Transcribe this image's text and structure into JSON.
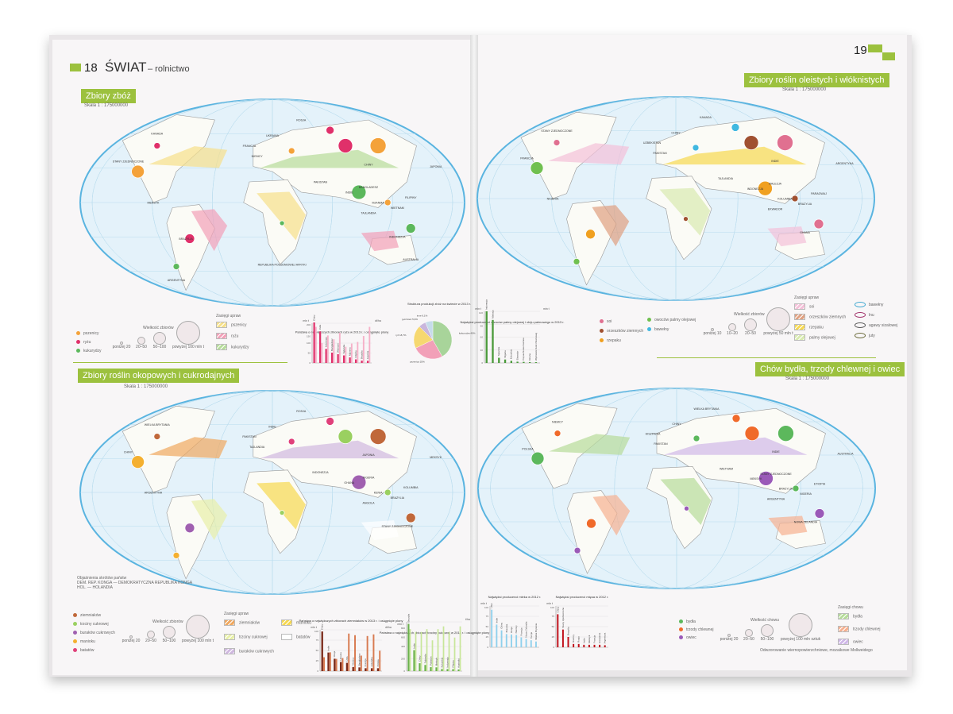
{
  "left_page": {
    "page_number": "18",
    "title": "ŚWIAT",
    "subtitle": "– rolnictwo",
    "section1": {
      "title": "Zbiory zbóż",
      "scale": "Skala 1 : 175000000",
      "labels": [
        "ROSJA",
        "KANADA",
        "STANY ZJEDNOCZONE",
        "FRANCJA",
        "UKRAINA",
        "NIEMCY",
        "CHINY",
        "PAKISTAN",
        "BANGLADESZ",
        "INDIE",
        "MJANMA",
        "TAJLANDIA",
        "WIETNAM",
        "FILIPINY",
        "JAPONIA",
        "INDONEZJA",
        "MEKSYK",
        "BRAZYLIA",
        "ARGENTYNA",
        "AUSTRALIA",
        "REPUBLIKA POŁUDNIOWEJ AFRYKI"
      ],
      "legend": {
        "sizes_title": "Wielkość zbiorów",
        "crops": [
          {
            "label": "pszenicy",
            "color": "#f4a23a"
          },
          {
            "label": "ryżu",
            "color": "#e0306a"
          },
          {
            "label": "kukurydzy",
            "color": "#5cb85c"
          }
        ],
        "sizes": [
          "poniżej 20",
          "20–50",
          "50–100",
          "powyżej 100 mln t"
        ],
        "ranges_title": "Zasięgi upraw",
        "ranges": [
          {
            "label": "pszenicy",
            "color": "#f6e08a"
          },
          {
            "label": "ryżu",
            "color": "#f2a0b8"
          },
          {
            "label": "kukurydzy",
            "color": "#b6dc9a"
          }
        ]
      },
      "rice_chart": {
        "title": "Państwa o największych zbiorach ryżu w 2013 r. i osiągnięte plony",
        "ylabel_left": "mln t",
        "ylabel_right": "dt/ha",
        "categories": [
          "Chiny",
          "Indie",
          "Indonezja",
          "Bangladesz",
          "Wietnam",
          "Tajlandia",
          "Mjanma",
          "Filipiny",
          "Brazylia",
          "Japonia"
        ],
        "values": [
          204,
          159,
          71,
          52,
          44,
          38,
          28,
          18,
          12,
          11
        ],
        "yields": [
          67,
          37,
          51,
          44,
          56,
          30,
          36,
          39,
          50,
          67
        ],
        "ylim": [
          0,
          200
        ],
        "color": "#e0306a"
      },
      "pie_chart": {
        "title": "Struktura produkcji zbóż na świecie w 2013 r.",
        "slices": [
          {
            "label": "kukurydza",
            "value": 40,
            "text": "kukurydza 40%",
            "color": "#a8d49a"
          },
          {
            "label": "pszenica",
            "value": 25,
            "text": "pszenica 25%",
            "color": "#f2a0b8"
          },
          {
            "label": "ryż",
            "value": 18.7,
            "text": "ryż 18,7%",
            "color": "#f6d870"
          },
          {
            "label": "jęczmień",
            "value": 5.9,
            "text": "jęczmień 5,9%",
            "color": "#c9b6dc"
          },
          {
            "label": "inne",
            "value": 6.1,
            "text": "inne 6,1%",
            "color": "#c6dcea"
          }
        ]
      }
    },
    "section2": {
      "title": "Zbiory roślin okopowych i cukrodajnych",
      "scale": "Skala 1 : 175000000",
      "labels": [
        "ROSJA",
        "WIELKA BRYTANIA",
        "CHINY",
        "PAKISTAN",
        "INDIE",
        "TAJLANDIA",
        "JAPONIA",
        "INDONEZJA",
        "NIGERIA",
        "GHANA",
        "KENIA",
        "ANGOLA",
        "BRAZYLIA",
        "KOLUMBIA",
        "MEKSYK",
        "STANY ZJEDNOCZONE",
        "ARGENTYNA"
      ],
      "abbr_title": "Objaśnienia skrótów państw",
      "abbr": [
        {
          "short": "DEM. REP. KONGA",
          "full": "DEMOKRATYCZNA REPUBLIKA KONGA"
        },
        {
          "short": "HOL.",
          "full": "HOLANDIA"
        }
      ],
      "legend": {
        "sizes_title": "Wielkość zbiorów",
        "crops": [
          {
            "label": "ziemniaków",
            "color": "#c0683a"
          },
          {
            "label": "trzciny cukrowej",
            "color": "#9ad060"
          },
          {
            "label": "buraków cukrowych",
            "color": "#a060b0"
          },
          {
            "label": "manioku",
            "color": "#f4b030"
          },
          {
            "label": "batatów",
            "color": "#e0407a"
          }
        ],
        "sizes": [
          "poniżej 20",
          "20–50",
          "50–100",
          "powyżej 100 mln t"
        ],
        "ranges_title": "Zasięgi upraw",
        "ranges": [
          {
            "label": "ziemniaków",
            "color": "#f0a860"
          },
          {
            "label": "trzciny cukrowej",
            "color": "#e8f0a8"
          },
          {
            "label": "buraków cukrowych",
            "color": "#d0b8e0"
          },
          {
            "label": "manioku",
            "color": "#f6d850"
          },
          {
            "label": "batatów",
            "color": "#ffffff"
          }
        ]
      },
      "potato_chart": {
        "title": "Państwa o największych zbiorach ziemniaków w 2013 r. i osiągnięte plony",
        "ylabel_left": "mln t",
        "ylabel_right": "dt/ha",
        "categories": [
          "Chiny",
          "Indie",
          "Rosja",
          "Ukraina",
          "USA",
          "Niemcy",
          "Bangladesz",
          "Francja",
          "Holandia",
          "Polska"
        ],
        "values": [
          96,
          45,
          30,
          22,
          20,
          10,
          9,
          7,
          7,
          7
        ],
        "yields": [
          170,
          230,
          150,
          160,
          460,
          440,
          190,
          430,
          450,
          250
        ],
        "ylim": [
          0,
          100
        ],
        "color": "#7a2a1a",
        "color2": "#d87a50"
      },
      "sugarcane_chart": {
        "title": "Państwa o największych zbiorach trzciny cukrowej w 2013 r. i osiągnięte plony",
        "ylabel_left": "mln t",
        "ylabel_right": "t/ha",
        "categories": [
          "Brazylia",
          "Indie",
          "Chiny",
          "Tajlandia",
          "Pakistan",
          "Meksyk",
          "Kolumbia",
          "Indonezja",
          "Filipiny",
          "Australia"
        ],
        "values": [
          768,
          341,
          128,
          100,
          64,
          61,
          34,
          33,
          32,
          27
        ],
        "yields": [
          75,
          70,
          70,
          75,
          55,
          75,
          80,
          70,
          60,
          80
        ],
        "ylim": [
          0,
          800
        ],
        "color": "#6ab04c",
        "color2": "#c8e69a"
      }
    }
  },
  "right_page": {
    "page_number": "19",
    "section1": {
      "title": "Zbiory roślin oleistych i włóknistych",
      "scale": "Skala 1 : 175000000",
      "labels": [
        "KANADA",
        "STANY ZJEDNOCZONE",
        "FRANCJA",
        "UZBEKISTAN",
        "CHINY",
        "PAKISTAN",
        "INDIE",
        "TAJLANDIA",
        "MALEZJA",
        "INDONEZJA",
        "KOLUMBIA",
        "EKWADOR",
        "BRAZYLIA",
        "PARAGWAJ",
        "ARGENTYNA",
        "GHANA",
        "NIGERIA"
      ],
      "palm_chart": {
        "title": "Najwięksi producenci owoców palmy olejowej i oleju palmowego w 2013 r.",
        "ylabel_left": "mln t",
        "ylabel_right": "mln t",
        "categories": [
          "Indonezja",
          "Malezja",
          "Tajlandia",
          "Nigeria",
          "Kolumbia",
          "Ekwador",
          "Papua-Nowa Gwinea",
          "Ghana",
          "Wybrzeże Kości Słoniowej"
        ],
        "values": [
          120,
          100,
          12,
          8,
          5,
          3,
          2.5,
          2,
          1.8
        ],
        "ylim": [
          0,
          120
        ],
        "color": "#4a9a3a"
      },
      "legend": {
        "sizes_title": "Wielkość zbiorów",
        "crops": [
          {
            "label": "soi",
            "color": "#e07090"
          },
          {
            "label": "orzeszków ziemnych",
            "color": "#a05030"
          },
          {
            "label": "rzepaku",
            "color": "#f0a020"
          },
          {
            "label": "owoców palmy olejowej",
            "color": "#70c050"
          },
          {
            "label": "bawełny",
            "color": "#40b8e0"
          }
        ],
        "sizes": [
          "poniżej 10",
          "10–20",
          "20–50",
          "powyżej 50 mln t"
        ],
        "ranges_title": "Zasięgi upraw",
        "ranges": [
          {
            "label": "soi",
            "color": "#f4c0d8"
          },
          {
            "label": "orzeszków ziemnych",
            "color": "#e0a080"
          },
          {
            "label": "rzepaku",
            "color": "#f6d850"
          },
          {
            "label": "palmy olejowej",
            "color": "#d8eab0"
          }
        ],
        "outlines": [
          {
            "label": "bawełny",
            "color": "#40a8d0"
          },
          {
            "label": "lnu",
            "color": "#a0306a"
          },
          {
            "label": "agawy sizalowej",
            "color": "#555555"
          },
          {
            "label": "juty",
            "color": "#6a6a3a"
          }
        ]
      }
    },
    "section2": {
      "title": "Chów bydła, trzody chlewnej i owiec",
      "scale": "Skala 1 : 175000000",
      "labels": [
        "WIELKA BRYTANIA",
        "NIEMCY",
        "POLSKA",
        "HISZPANIA",
        "CHINY",
        "PAKISTAN",
        "INDIE",
        "WIETNAM",
        "STANY ZJEDNOCZONE",
        "MEKSYK",
        "BRAZYLIA",
        "ARGENTYNA",
        "NIGERIA",
        "ETIOPIA",
        "AUSTRALIA",
        "NOWA ZELANDIA"
      ],
      "milk_chart": {
        "title": "Najwięksi producenci mleka w 2012 r.",
        "ylabel_left": "mln t",
        "categories": [
          "USA",
          "Indie",
          "Chiny",
          "Brazylia",
          "Rosja",
          "Niemcy",
          "Francja",
          "Nowa Zelandia",
          "Turcja",
          "Wielka Brytania"
        ],
        "values": [
          91,
          55,
          41,
          32,
          31,
          30,
          24,
          20,
          17,
          14
        ],
        "ylim": [
          0,
          100
        ],
        "color": "#8fd0ec"
      },
      "meat_chart": {
        "title": "Najwięksi producenci mięsa w 2012 r.",
        "ylabel_left": "mln t",
        "categories": [
          "Chiny",
          "Stany Zjednoczone",
          "Brazylia",
          "Niemcy",
          "Rosja",
          "Indie",
          "Meksyk",
          "Francja",
          "Hiszpania",
          "Argentyna"
        ],
        "values": [
          80,
          43,
          25,
          8,
          8,
          6,
          6,
          6,
          6,
          5
        ],
        "ylim": [
          0,
          100
        ],
        "color": "#c0101a"
      },
      "legend": {
        "sizes_title": "Wielkość chowu",
        "animals": [
          {
            "label": "bydła",
            "color": "#5cb85c"
          },
          {
            "label": "trzody chlewnej",
            "color": "#f06a2a"
          },
          {
            "label": "owiec",
            "color": "#9a5ab8"
          }
        ],
        "sizes": [
          "poniżej 20",
          "20–50",
          "50–100",
          "powyżej 100 mln sztuk"
        ],
        "ranges_title": "Zasięgi chowu",
        "ranges": [
          {
            "label": "bydła",
            "color": "#b6dc9a"
          },
          {
            "label": "trzody chlewnej",
            "color": "#f6b090"
          },
          {
            "label": "owiec",
            "color": "#d0b8e8"
          }
        ]
      },
      "projection_note": "Odwzorowanie wiernopowierzchniowe, mozaikowe Mollweidego"
    }
  },
  "colors": {
    "accent": "#9cc13e",
    "ocean": "#e4f2fa",
    "ocean_border": "#5ab4e0"
  }
}
